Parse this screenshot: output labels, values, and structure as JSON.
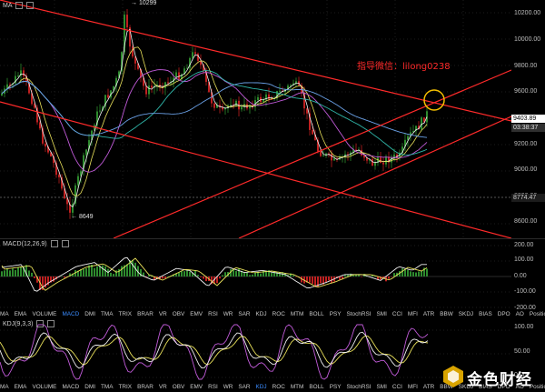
{
  "main": {
    "indicator_label": "MA",
    "high_label": "10299",
    "low_label": "8649",
    "annotation": "指导微信：lilong0238",
    "price_axis": [
      "10200.00",
      "10000.00",
      "9800.00",
      "9600.00",
      "9400.00",
      "9200.00",
      "9000.00",
      "8800.00",
      "8600.00"
    ],
    "current_price": "9403.89",
    "countdown": "03:38:37",
    "level_price": "8774.47"
  },
  "macd": {
    "label": "MACD(12,26,9)",
    "axis": [
      "200.00",
      "100.00",
      "0.00",
      "-100.00",
      "-200.00"
    ]
  },
  "kdj": {
    "label": "KDJ(9,3,3)",
    "axis": [
      "100.00",
      "50.00",
      "0.00"
    ]
  },
  "tabs_row1": [
    "MA",
    "EMA",
    "VOLUME",
    "MACD",
    "DMI",
    "TMA",
    "TRIX",
    "BRAR",
    "VR",
    "OBV",
    "EMV",
    "RSI",
    "WR",
    "SAR",
    "KDJ",
    "ROC",
    "MTM",
    "BOLL",
    "PSY",
    "StochRSI",
    "SMI",
    "CCI",
    "MFI",
    "ATR",
    "BBW",
    "SKDJ",
    "BIAS",
    "DPO",
    "AO",
    "Position",
    "FundFlow"
  ],
  "tabs_row2": [
    "MA",
    "EMA",
    "VOLUME",
    "MACD",
    "DMI",
    "TMA",
    "TRIX",
    "BRAR",
    "VR",
    "OBV",
    "EMV",
    "RSI",
    "WR",
    "SAR",
    "KDJ",
    "ROC",
    "MTM",
    "BOLL",
    "PSY",
    "StochRSI",
    "SMI",
    "CCI",
    "MFI",
    "ATR",
    "BBW",
    "SKDJ",
    "BIAS",
    "DPO",
    "AO",
    "Position",
    "FundFlow"
  ],
  "active_tab_row1": "MACD",
  "active_tab_row2": "KDJ",
  "watermark": "金色财经",
  "colors": {
    "trendline": "#ff2a2a",
    "annotation": "#ff2a2a",
    "circle": "#f5c000",
    "up": "#2e8b2e",
    "down": "#c02020",
    "price_tag": "#ffffff",
    "countdown_tag": "#2a2a2a",
    "active_tab": "#3b8cff"
  }
}
